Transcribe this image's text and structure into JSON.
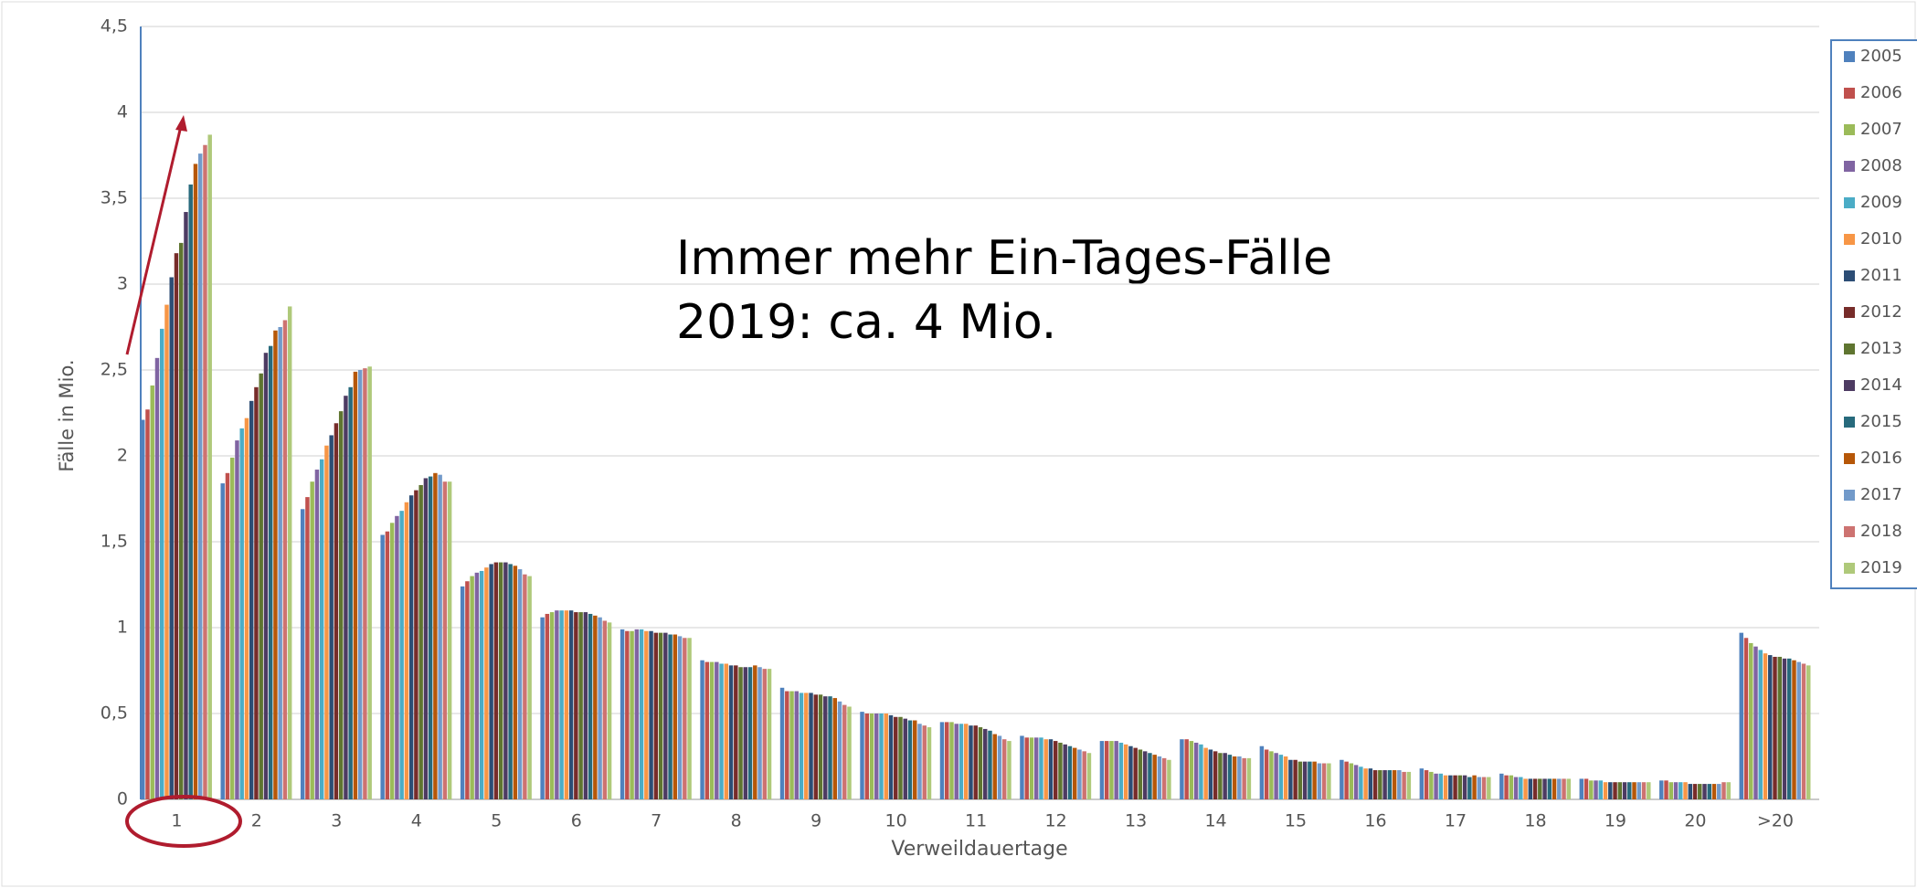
{
  "chart_data": {
    "type": "bar",
    "y_label": "Fälle in Mio.",
    "x_label": "Verweildauertage",
    "annotations": [
      "Immer mehr Ein-Tages-Fälle",
      "2019: ca. 4 Mio."
    ],
    "categories": [
      "1",
      "2",
      "3",
      "4",
      "5",
      "6",
      "7",
      "8",
      "9",
      "10",
      "11",
      "12",
      "13",
      "14",
      "15",
      "16",
      "17",
      "18",
      "19",
      "20",
      ">20"
    ],
    "ylim": [
      0,
      4.5
    ],
    "yticks": [
      0,
      {
        "value": 0.5,
        "label": "0,5"
      },
      1,
      {
        "value": 1.5,
        "label": "1,5"
      },
      2,
      {
        "value": 2.5,
        "label": "2,5"
      },
      3,
      {
        "value": 3.5,
        "label": "3,5"
      },
      4,
      {
        "value": 4.5,
        "label": "4,5"
      }
    ],
    "grid": true,
    "legend": "right",
    "series": [
      {
        "name": "2005",
        "color": "#4f81bd",
        "values": [
          2.21,
          1.84,
          1.69,
          1.54,
          1.24,
          1.06,
          0.99,
          0.81,
          0.65,
          0.51,
          0.45,
          0.37,
          0.34,
          0.35,
          0.31,
          0.23,
          0.18,
          0.15,
          0.12,
          0.11,
          0.97
        ]
      },
      {
        "name": "2006",
        "color": "#c0504d",
        "values": [
          2.27,
          1.9,
          1.76,
          1.56,
          1.27,
          1.08,
          0.98,
          0.8,
          0.63,
          0.5,
          0.45,
          0.36,
          0.34,
          0.35,
          0.29,
          0.22,
          0.17,
          0.14,
          0.12,
          0.11,
          0.94
        ]
      },
      {
        "name": "2007",
        "color": "#9bbb59",
        "values": [
          2.41,
          1.99,
          1.85,
          1.61,
          1.3,
          1.09,
          0.98,
          0.8,
          0.63,
          0.5,
          0.45,
          0.36,
          0.34,
          0.34,
          0.28,
          0.21,
          0.16,
          0.14,
          0.11,
          0.1,
          0.91
        ]
      },
      {
        "name": "2008",
        "color": "#8064a2",
        "values": [
          2.57,
          2.09,
          1.92,
          1.65,
          1.32,
          1.1,
          0.99,
          0.8,
          0.63,
          0.5,
          0.44,
          0.36,
          0.34,
          0.33,
          0.27,
          0.2,
          0.15,
          0.13,
          0.11,
          0.1,
          0.89
        ]
      },
      {
        "name": "2009",
        "color": "#4bacc6",
        "values": [
          2.74,
          2.16,
          1.98,
          1.68,
          1.33,
          1.1,
          0.99,
          0.79,
          0.62,
          0.5,
          0.44,
          0.36,
          0.33,
          0.32,
          0.26,
          0.19,
          0.15,
          0.13,
          0.11,
          0.1,
          0.87
        ]
      },
      {
        "name": "2010",
        "color": "#f79646",
        "values": [
          2.88,
          2.22,
          2.06,
          1.73,
          1.35,
          1.1,
          0.98,
          0.79,
          0.62,
          0.5,
          0.44,
          0.35,
          0.32,
          0.3,
          0.25,
          0.18,
          0.14,
          0.12,
          0.1,
          0.1,
          0.85
        ]
      },
      {
        "name": "2011",
        "color": "#2c4d75",
        "values": [
          3.04,
          2.32,
          2.12,
          1.77,
          1.37,
          1.1,
          0.98,
          0.78,
          0.62,
          0.49,
          0.43,
          0.35,
          0.31,
          0.29,
          0.23,
          0.18,
          0.14,
          0.12,
          0.1,
          0.09,
          0.84
        ]
      },
      {
        "name": "2012",
        "color": "#772c2a",
        "values": [
          3.18,
          2.4,
          2.19,
          1.8,
          1.38,
          1.09,
          0.97,
          0.78,
          0.61,
          0.48,
          0.43,
          0.34,
          0.3,
          0.28,
          0.23,
          0.17,
          0.14,
          0.12,
          0.1,
          0.09,
          0.83
        ]
      },
      {
        "name": "2013",
        "color": "#5f7530",
        "values": [
          3.24,
          2.48,
          2.26,
          1.83,
          1.38,
          1.09,
          0.97,
          0.77,
          0.61,
          0.48,
          0.42,
          0.33,
          0.29,
          0.27,
          0.22,
          0.17,
          0.14,
          0.12,
          0.1,
          0.09,
          0.83
        ]
      },
      {
        "name": "2014",
        "color": "#4d3b62",
        "values": [
          3.42,
          2.6,
          2.35,
          1.87,
          1.38,
          1.09,
          0.97,
          0.77,
          0.6,
          0.47,
          0.41,
          0.32,
          0.28,
          0.27,
          0.22,
          0.17,
          0.14,
          0.12,
          0.1,
          0.09,
          0.82
        ]
      },
      {
        "name": "2015",
        "color": "#276a7c",
        "values": [
          3.58,
          2.64,
          2.4,
          1.88,
          1.37,
          1.08,
          0.96,
          0.77,
          0.6,
          0.46,
          0.4,
          0.31,
          0.27,
          0.26,
          0.22,
          0.17,
          0.13,
          0.12,
          0.1,
          0.09,
          0.82
        ]
      },
      {
        "name": "2016",
        "color": "#b65708",
        "values": [
          3.7,
          2.73,
          2.49,
          1.9,
          1.36,
          1.07,
          0.96,
          0.78,
          0.59,
          0.46,
          0.38,
          0.3,
          0.26,
          0.25,
          0.22,
          0.17,
          0.14,
          0.12,
          0.1,
          0.09,
          0.81
        ]
      },
      {
        "name": "2017",
        "color": "#729aca",
        "values": [
          3.76,
          2.75,
          2.5,
          1.89,
          1.34,
          1.06,
          0.95,
          0.77,
          0.57,
          0.44,
          0.37,
          0.29,
          0.25,
          0.25,
          0.21,
          0.17,
          0.13,
          0.12,
          0.1,
          0.09,
          0.8
        ]
      },
      {
        "name": "2018",
        "color": "#cd7371",
        "values": [
          3.81,
          2.79,
          2.51,
          1.85,
          1.31,
          1.04,
          0.94,
          0.76,
          0.55,
          0.43,
          0.35,
          0.28,
          0.24,
          0.24,
          0.21,
          0.16,
          0.13,
          0.12,
          0.1,
          0.1,
          0.79
        ]
      },
      {
        "name": "2019",
        "color": "#afc97a",
        "values": [
          3.87,
          2.87,
          2.52,
          1.85,
          1.3,
          1.03,
          0.94,
          0.76,
          0.54,
          0.42,
          0.34,
          0.27,
          0.23,
          0.24,
          0.21,
          0.16,
          0.13,
          0.12,
          0.1,
          0.1,
          0.78
        ]
      }
    ]
  }
}
